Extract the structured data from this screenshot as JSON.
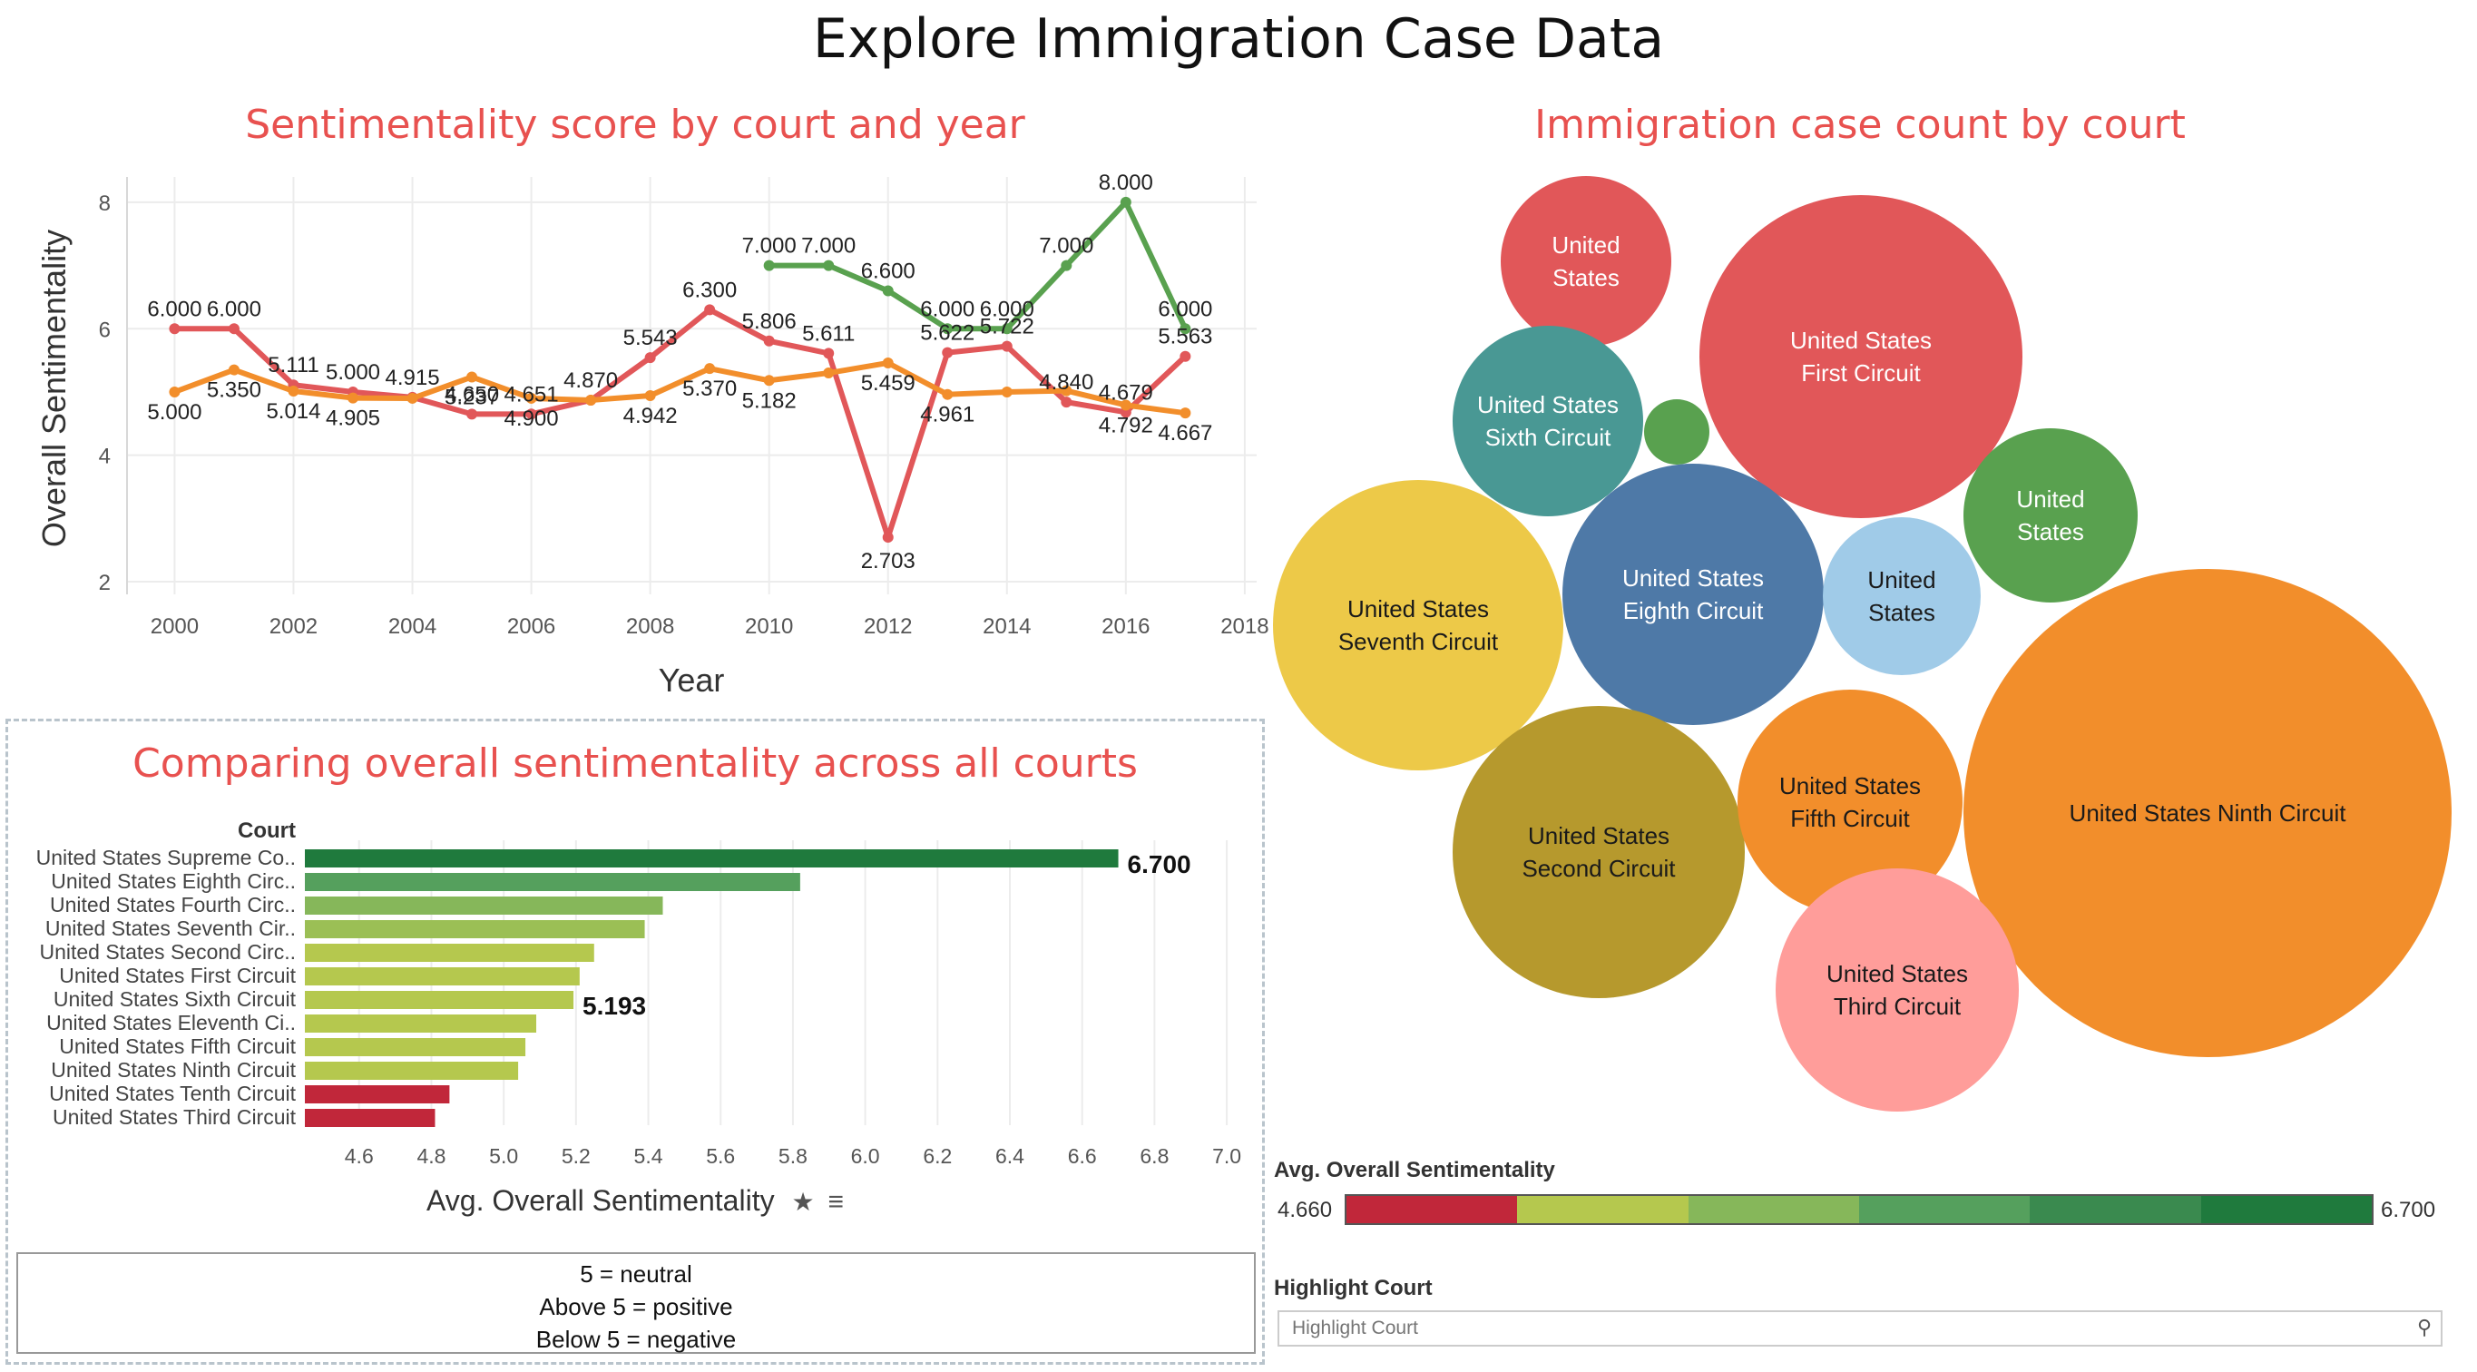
{
  "dashboard": {
    "title": "Explore Immigration Case Data"
  },
  "line_chart": {
    "title": "Sentimentality score by court and year"
  },
  "bubble_chart": {
    "title": "Immigration case count by court"
  },
  "bar_chart": {
    "title": "Comparing overall sentimentality across all courts",
    "column_header": "Court",
    "axis_label": "Avg. Overall Sentimentality",
    "pin_icon": "pin-icon",
    "sort_icon": "sort-icon"
  },
  "note": {
    "line1": "5 = neutral",
    "line2": "Above 5 = positive",
    "line3": "Below 5 = negative"
  },
  "legend": {
    "title": "Avg. Overall Sentimentality",
    "min": "4.660",
    "max": "6.700",
    "colors": [
      "#c1273a",
      "#b5c84e",
      "#86b75a",
      "#55a05d",
      "#3a8a4f",
      "#1f7a3d"
    ]
  },
  "highlight": {
    "title": "Highlight Court",
    "placeholder": "Highlight Court",
    "icon": "search-icon"
  },
  "chart_data": [
    {
      "type": "line",
      "xlabel": "Year",
      "ylabel": "Overall Sentimentality",
      "xlim": [
        1999.2,
        2018.2
      ],
      "ylim": [
        1.8,
        8.4
      ],
      "x_ticks": [
        "2000",
        "2002",
        "2004",
        "2006",
        "2008",
        "2010",
        "2012",
        "2014",
        "2016",
        "2018"
      ],
      "y_ticks": [
        "2",
        "4",
        "6",
        "8"
      ],
      "grid": true,
      "series": [
        {
          "color": "#e15759",
          "points": [
            [
              2000,
              6.0
            ],
            [
              2001,
              6.0
            ],
            [
              2002,
              5.111
            ],
            [
              2003,
              5.0
            ],
            [
              2004,
              4.915
            ],
            [
              2005,
              4.65
            ],
            [
              2006,
              4.651
            ],
            [
              2007,
              4.87
            ],
            [
              2008,
              5.543
            ],
            [
              2009,
              6.3
            ],
            [
              2010,
              5.806
            ],
            [
              2011,
              5.611
            ],
            [
              2012,
              2.703
            ],
            [
              2013,
              5.622
            ],
            [
              2014,
              5.722
            ],
            [
              2015,
              4.84
            ],
            [
              2016,
              4.679
            ],
            [
              2017,
              5.563
            ]
          ],
          "labels": [
            "6.000",
            "6.000",
            "5.111",
            "5.000",
            "4.915",
            "4.650",
            "4.651",
            "4.870",
            "5.543",
            "6.300",
            "5.806",
            "5.611",
            "2.703",
            "5.622",
            "5.722",
            "4.840",
            "4.679",
            "5.563"
          ]
        },
        {
          "color": "#f28e2b",
          "points": [
            [
              2000,
              5.0
            ],
            [
              2001,
              5.35
            ],
            [
              2002,
              5.014
            ],
            [
              2003,
              4.905
            ],
            [
              2004,
              4.9
            ],
            [
              2005,
              5.237
            ],
            [
              2006,
              4.9
            ],
            [
              2007,
              4.87
            ],
            [
              2008,
              4.942
            ],
            [
              2009,
              5.37
            ],
            [
              2010,
              5.182
            ],
            [
              2011,
              5.3
            ],
            [
              2012,
              5.459
            ],
            [
              2013,
              4.961
            ],
            [
              2014,
              5.0
            ],
            [
              2015,
              5.02
            ],
            [
              2016,
              4.792
            ],
            [
              2017,
              4.667
            ]
          ],
          "labels": [
            "5.000",
            "5.350",
            "5.014",
            "4.905",
            "",
            "5.237",
            "4.900",
            "",
            "4.942",
            "5.370",
            "5.182",
            "",
            "5.459",
            "4.961",
            "",
            "",
            "4.792",
            "4.667"
          ]
        },
        {
          "color": "#59a14f",
          "points": [
            [
              2010,
              7.0
            ],
            [
              2011,
              7.0
            ],
            [
              2012,
              6.6
            ],
            [
              2013,
              6.0
            ],
            [
              2014,
              6.0
            ],
            [
              2015,
              7.0
            ],
            [
              2016,
              8.0
            ],
            [
              2017,
              6.0
            ]
          ],
          "labels": [
            "7.000",
            "7.000",
            "6.600",
            "6.000",
            "6.000",
            "7.000",
            "8.000",
            "6.000"
          ]
        }
      ]
    },
    {
      "type": "bar",
      "orientation": "horizontal",
      "xlabel": "Avg. Overall Sentimentality",
      "xlim": [
        4.45,
        7.05
      ],
      "x_ticks": [
        "4.6",
        "4.8",
        "5.0",
        "5.2",
        "5.4",
        "5.6",
        "5.8",
        "6.0",
        "6.2",
        "6.4",
        "6.6",
        "6.8",
        "7.0"
      ],
      "categories": [
        "United States Supreme Co..",
        "United States Eighth Circ..",
        "United States Fourth Circ..",
        "United States Seventh Cir..",
        "United States Second Circ..",
        "United States First Circuit",
        "United States Sixth Circuit",
        "United States Eleventh Ci..",
        "United States Fifth Circuit",
        "United States Ninth Circuit",
        "United States Tenth Circuit",
        "United States Third Circuit"
      ],
      "values": [
        6.7,
        5.82,
        5.44,
        5.39,
        5.25,
        5.21,
        5.193,
        5.09,
        5.06,
        5.04,
        4.85,
        4.81
      ],
      "colors": [
        "#1f7a3d",
        "#55a05d",
        "#86b75a",
        "#9bbf55",
        "#b5c84e",
        "#b5c84e",
        "#b5c84e",
        "#b5c84e",
        "#b5c84e",
        "#b5c84e",
        "#c1273a",
        "#c1273a"
      ],
      "value_labels": [
        "6.700",
        "",
        "",
        "",
        "",
        "",
        "5.193",
        "",
        "",
        "",
        "",
        ""
      ]
    },
    {
      "type": "bubble",
      "bubbles": [
        {
          "label": "United States",
          "color": "#e15759",
          "size": 0.1
        },
        {
          "label": "United States First Circuit",
          "color": "#e15759",
          "size": 0.35
        },
        {
          "label": "United States Sixth Circuit",
          "color": "#499894",
          "size": 0.13
        },
        {
          "label": "",
          "color": "#59a14f",
          "size": 0.02
        },
        {
          "label": "United States",
          "color": "#59a14f",
          "size": 0.11
        },
        {
          "label": "United States Seventh Circuit",
          "color": "#edc948",
          "size": 0.3
        },
        {
          "label": "United States Eighth Circuit",
          "color": "#4e79a7",
          "size": 0.24
        },
        {
          "label": "United States",
          "color": "#a0cbe8",
          "size": 0.095
        },
        {
          "label": "United States Second Circuit",
          "color": "#b6992d",
          "size": 0.31
        },
        {
          "label": "United States Fifth Circuit",
          "color": "#f28e2b",
          "size": 0.19
        },
        {
          "label": "United States Ninth Circuit",
          "color": "#f28e2b",
          "size": 1.0
        },
        {
          "label": "United States Third Circuit",
          "color": "#ff9d9a",
          "size": 0.22
        }
      ]
    }
  ]
}
